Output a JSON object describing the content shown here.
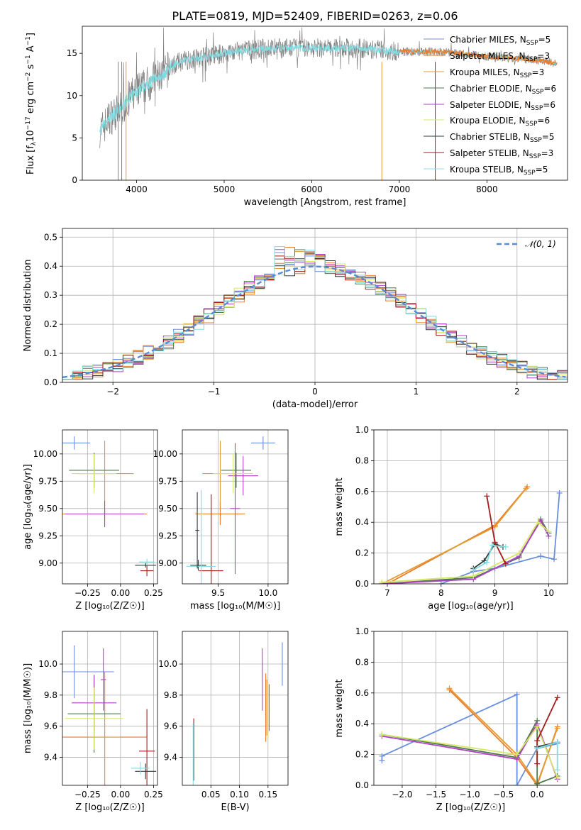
{
  "figure_title": "PLATE=0819, MJD=52409, FIBERID=0263, z=0.06",
  "colors": {
    "c0": "#6a8fdc",
    "c1": "#ea7a2d",
    "c2": "#e39b2f",
    "c3": "#4d7a4d",
    "c4": "#b240c6",
    "c5": "#d6e86a",
    "c6": "#2f3c3c",
    "c7": "#a51a1a",
    "c8": "#7fdce3"
  },
  "legend_entries": [
    {
      "pre": "Chabrier MILES, N",
      "sub": "SSP",
      "post": "=5",
      "color": "#6a8fdc"
    },
    {
      "pre": "Salpeter MILES, N",
      "sub": "SSP",
      "post": "=3",
      "color": "#ea7a2d"
    },
    {
      "pre": "Kroupa MILES, N",
      "sub": "SSP",
      "post": "=3",
      "color": "#e39b2f"
    },
    {
      "pre": "Chabrier ELODIE, N",
      "sub": "SSP",
      "post": "=6",
      "color": "#4d7a4d"
    },
    {
      "pre": "Salpeter ELODIE, N",
      "sub": "SSP",
      "post": "=6",
      "color": "#b240c6"
    },
    {
      "pre": "Kroupa ELODIE, N",
      "sub": "SSP",
      "post": "=6",
      "color": "#d6e86a"
    },
    {
      "pre": "Chabrier STELIB, N",
      "sub": "SSP",
      "post": "=5",
      "color": "#2f3c3c"
    },
    {
      "pre": "Salpeter STELIB, N",
      "sub": "SSP",
      "post": "=3",
      "color": "#a51a1a"
    },
    {
      "pre": "Kroupa STELIB, N",
      "sub": "SSP",
      "post": "=5",
      "color": "#9ad8e8"
    }
  ],
  "chart_data": [
    {
      "id": "spectrum",
      "type": "line",
      "xlabel": "wavelength [Angstrom, rest frame]",
      "ylabel_parts": {
        "a": "Flux [f",
        "b": "λ",
        "c": "10",
        "d": "−17",
        "e": " erg cm",
        "f": "−2",
        "g": " s",
        "h": "−1",
        "i": " A",
        "j": "−1",
        "k": "]"
      },
      "xlim": [
        3380,
        8920
      ],
      "ylim": [
        0,
        18.2
      ],
      "xticks": [
        4000,
        5000,
        6000,
        7000,
        8000
      ],
      "yticks": [
        0,
        5,
        10,
        15
      ],
      "grid": false,
      "data_anchor": [
        [
          3600,
          6.0
        ],
        [
          3700,
          7.5
        ],
        [
          3800,
          8.2
        ],
        [
          3900,
          9.5
        ],
        [
          4000,
          10.5
        ],
        [
          4100,
          11.2
        ],
        [
          4200,
          12.0
        ],
        [
          4300,
          12.5
        ],
        [
          4400,
          13.5
        ],
        [
          4500,
          14.0
        ],
        [
          4600,
          14.3
        ],
        [
          4800,
          14.6
        ],
        [
          5000,
          15.0
        ],
        [
          5200,
          15.3
        ],
        [
          5500,
          15.6
        ],
        [
          6000,
          15.6
        ],
        [
          6500,
          15.6
        ],
        [
          7000,
          15.2
        ],
        [
          7500,
          15.2
        ],
        [
          8000,
          14.6
        ],
        [
          8500,
          14.3
        ],
        [
          8800,
          13.8
        ]
      ]
    },
    {
      "id": "residuals",
      "type": "step",
      "xlabel": "(data-model)/error",
      "ylabel": "Normed distribution",
      "xlim": [
        -2.5,
        2.5
      ],
      "ylim": [
        0,
        0.53
      ],
      "xticks": [
        -2,
        -1,
        0,
        1,
        2
      ],
      "yticks": [
        0.0,
        0.1,
        0.2,
        0.3,
        0.4,
        0.5
      ],
      "grid": true,
      "legend": "𝒩(0, 1)",
      "bin_width": 0.1
    },
    {
      "id": "age_vs_Z",
      "type": "errorbar",
      "xlabel": "Z [log₁₀(Z/Z☉)]",
      "ylabel": "age  [log₁₀(age/yr)]",
      "xlim": [
        -0.44,
        0.28
      ],
      "ylim": [
        8.81,
        10.22
      ],
      "xticks": [
        -0.25,
        0.0,
        0.25
      ],
      "yticks": [
        9.0,
        9.25,
        9.5,
        9.75,
        10.0
      ],
      "points": [
        {
          "x": -0.35,
          "y": 10.1,
          "xerr": 0.12,
          "yerr": 0.06,
          "c": 0
        },
        {
          "x": -0.12,
          "y": 9.45,
          "xerr": 0.32,
          "yerr": 0.05,
          "c": 1
        },
        {
          "x": -0.12,
          "y": 9.82,
          "xerr": 0.22,
          "yerr": 0.3,
          "c": 2
        },
        {
          "x": -0.2,
          "y": 9.85,
          "xerr": 0.19,
          "yerr": 0.16,
          "c": 3
        },
        {
          "x": -0.12,
          "y": 9.45,
          "xerr": 0.3,
          "yerr": 0.12,
          "c": 4
        },
        {
          "x": -0.2,
          "y": 9.82,
          "xerr": 0.17,
          "yerr": 0.18,
          "c": 5
        },
        {
          "x": 0.19,
          "y": 8.98,
          "xerr": 0.08,
          "yerr": 0.02,
          "c": 6
        },
        {
          "x": 0.2,
          "y": 8.93,
          "xerr": 0.05,
          "yerr": 0.05,
          "c": 7
        },
        {
          "x": 0.2,
          "y": 9.01,
          "xerr": 0.06,
          "yerr": 0.03,
          "c": 8
        }
      ]
    },
    {
      "id": "age_vs_mass",
      "type": "errorbar",
      "xlabel": "mass [log₁₀(M/M☉)]",
      "ylabel": "",
      "xlim": [
        9.14,
        10.2
      ],
      "ylim": [
        8.81,
        10.22
      ],
      "xticks": [
        9.5,
        10.0
      ],
      "yticks": [
        9.0,
        9.25,
        9.5,
        9.75,
        10.0
      ],
      "points": [
        {
          "x": 9.95,
          "y": 10.1,
          "xerr": 0.12,
          "yerr": 0.06,
          "c": 0
        },
        {
          "x": 9.52,
          "y": 9.45,
          "xerr": 0.25,
          "yerr": 0.1,
          "c": 1
        },
        {
          "x": 9.52,
          "y": 9.82,
          "xerr": 0.18,
          "yerr": 0.3,
          "c": 2
        },
        {
          "x": 9.68,
          "y": 9.85,
          "xerr": 0.15,
          "yerr": 0.16,
          "c": 3
        },
        {
          "x": 9.75,
          "y": 9.8,
          "xerr": 0.15,
          "yerr": 0.18,
          "c": 4
        },
        {
          "x": 9.65,
          "y": 9.82,
          "xerr": 0.2,
          "yerr": 0.18,
          "c": 5
        },
        {
          "x": 9.3,
          "y": 8.98,
          "xerr": 0.08,
          "yerr": 0.05,
          "c": 6
        },
        {
          "x": 9.43,
          "y": 8.93,
          "xerr": 0.12,
          "yerr": 0.7,
          "c": 7
        },
        {
          "x": 9.33,
          "y": 8.97,
          "xerr": 0.15,
          "yerr": 0.7,
          "c": 8
        },
        {
          "x": 9.29,
          "y": 9.3,
          "xerr": 0.02,
          "yerr": 0.35,
          "c": 6
        },
        {
          "x": 9.67,
          "y": 9.5,
          "xerr": 0.05,
          "yerr": 0.6,
          "c": 4
        }
      ]
    },
    {
      "id": "massweight_vs_age",
      "type": "line",
      "xlabel": "age  [log₁₀(age/yr)]",
      "ylabel": "mass weight",
      "xlim": [
        6.75,
        10.35
      ],
      "ylim": [
        0,
        1.0
      ],
      "xticks": [
        7,
        8,
        9,
        10
      ],
      "yticks": [
        0.0,
        0.2,
        0.4,
        0.6,
        0.8,
        1.0
      ],
      "series": [
        {
          "c": 0,
          "pts": [
            [
              8.0,
              0.0
            ],
            [
              8.6,
              0.08
            ],
            [
              9.0,
              0.1
            ],
            [
              9.85,
              0.18
            ],
            [
              10.1,
              0.16
            ],
            [
              10.2,
              0.59
            ]
          ]
        },
        {
          "c": 1,
          "pts": [
            [
              7.0,
              0.0
            ],
            [
              9.0,
              0.38
            ],
            [
              9.6,
              0.63
            ]
          ]
        },
        {
          "c": 2,
          "pts": [
            [
              6.9,
              0.0
            ],
            [
              9.0,
              0.37
            ],
            [
              9.58,
              0.62
            ]
          ]
        },
        {
          "c": 3,
          "pts": [
            [
              6.9,
              0.0
            ],
            [
              8.6,
              0.04
            ],
            [
              9.45,
              0.17
            ],
            [
              9.85,
              0.42
            ],
            [
              10.0,
              0.33
            ]
          ]
        },
        {
          "c": 4,
          "pts": [
            [
              6.9,
              0.0
            ],
            [
              8.6,
              0.03
            ],
            [
              9.45,
              0.18
            ],
            [
              9.85,
              0.41
            ],
            [
              10.0,
              0.31
            ]
          ]
        },
        {
          "c": 5,
          "pts": [
            [
              6.9,
              0.01
            ],
            [
              8.6,
              0.05
            ],
            [
              9.45,
              0.2
            ],
            [
              9.8,
              0.4
            ],
            [
              10.0,
              0.34
            ]
          ]
        },
        {
          "c": 6,
          "pts": [
            [
              8.6,
              0.1
            ],
            [
              8.8,
              0.15
            ],
            [
              9.0,
              0.26
            ],
            [
              9.15,
              0.24
            ]
          ]
        },
        {
          "c": 7,
          "pts": [
            [
              8.85,
              0.57
            ],
            [
              9.0,
              0.27
            ],
            [
              9.2,
              0.13
            ]
          ]
        },
        {
          "c": 8,
          "pts": [
            [
              8.6,
              0.09
            ],
            [
              8.85,
              0.14
            ],
            [
              8.95,
              0.25
            ],
            [
              9.2,
              0.24
            ]
          ]
        }
      ]
    },
    {
      "id": "mass_vs_Z",
      "type": "errorbar",
      "xlabel": "Z [log₁₀(Z/Z☉)]",
      "ylabel": "mass [log₁₀(M/M☉)]",
      "xlim": [
        -0.44,
        0.28
      ],
      "ylim": [
        9.22,
        10.21
      ],
      "xticks": [
        -0.25,
        0.0,
        0.25
      ],
      "yticks": [
        9.4,
        9.6,
        9.8,
        10.0
      ],
      "points": [
        {
          "x": -0.35,
          "y": 9.95,
          "xerr": 0.3,
          "yerr": 0.17,
          "c": 0
        },
        {
          "x": -0.12,
          "y": 9.53,
          "xerr": 0.32,
          "yerr": 0.4,
          "c": 1
        },
        {
          "x": -0.12,
          "y": 9.53,
          "xerr": 0.12,
          "yerr": 0.42,
          "c": 2
        },
        {
          "x": -0.2,
          "y": 9.68,
          "xerr": 0.2,
          "yerr": 0.25,
          "c": 3
        },
        {
          "x": -0.2,
          "y": 9.75,
          "xerr": 0.17,
          "yerr": 0.18,
          "c": 4
        },
        {
          "x": -0.2,
          "y": 9.65,
          "xerr": 0.22,
          "yerr": 0.2,
          "c": 5
        },
        {
          "x": 0.19,
          "y": 9.31,
          "xerr": 0.08,
          "yerr": 0.05,
          "c": 6
        },
        {
          "x": 0.2,
          "y": 9.44,
          "xerr": 0.06,
          "yerr": 0.27,
          "c": 7
        },
        {
          "x": 0.15,
          "y": 9.33,
          "xerr": 0.07,
          "yerr": 0.04,
          "c": 8
        },
        {
          "x": -0.13,
          "y": 9.9,
          "xerr": 0.02,
          "yerr": 0.2,
          "c": 4
        }
      ]
    },
    {
      "id": "mass_vs_EBV",
      "type": "errorbar",
      "xlabel": "E(B-V)",
      "ylabel": "",
      "xlim": [
        0.0,
        0.185
      ],
      "ylim": [
        9.22,
        10.21
      ],
      "xticks": [
        0.05,
        0.1,
        0.15
      ],
      "yticks": [
        9.4,
        9.6,
        9.8,
        10.0
      ],
      "points": [
        {
          "x": 0.175,
          "y": 10.0,
          "xerr": 0.0,
          "yerr": 0.14,
          "c": 0
        },
        {
          "x": 0.146,
          "y": 9.72,
          "xerr": 0.0,
          "yerr": 0.22,
          "c": 1
        },
        {
          "x": 0.148,
          "y": 9.72,
          "xerr": 0.0,
          "yerr": 0.18,
          "c": 2
        },
        {
          "x": 0.15,
          "y": 9.7,
          "xerr": 0.0,
          "yerr": 0.18,
          "c": 5
        },
        {
          "x": 0.14,
          "y": 9.9,
          "xerr": 0.0,
          "yerr": 0.2,
          "c": 4
        },
        {
          "x": 0.152,
          "y": 9.72,
          "xerr": 0.0,
          "yerr": 0.15,
          "c": 4
        },
        {
          "x": 0.02,
          "y": 9.45,
          "xerr": 0.0,
          "yerr": 0.2,
          "c": 7
        },
        {
          "x": 0.019,
          "y": 9.4,
          "xerr": 0.0,
          "yerr": 0.22,
          "c": 8
        }
      ]
    },
    {
      "id": "massweight_vs_Z",
      "type": "line",
      "xlabel": "Z [log₁₀(Z/Z☉)]",
      "ylabel": "mass weight",
      "xlim": [
        -2.42,
        0.45
      ],
      "ylim": [
        0,
        1.0
      ],
      "xticks": [
        -2.0,
        -1.5,
        -1.0,
        -0.5,
        0.0
      ],
      "yticks": [
        0.0,
        0.2,
        0.4,
        0.6,
        0.8,
        1.0
      ],
      "series": [
        {
          "c": 0,
          "pts": [
            [
              -2.3,
              0.16
            ],
            [
              -2.3,
              0.19
            ],
            [
              -0.3,
              0.59
            ],
            [
              -0.3,
              0.0
            ],
            [
              0.0,
              0.24
            ],
            [
              0.3,
              0.27
            ]
          ]
        },
        {
          "c": 1,
          "pts": [
            [
              -1.3,
              0.62
            ],
            [
              -0.3,
              0.18
            ],
            [
              0.0,
              0.0
            ],
            [
              0.3,
              0.38
            ]
          ]
        },
        {
          "c": 2,
          "pts": [
            [
              -1.3,
              0.63
            ],
            [
              -0.3,
              0.2
            ],
            [
              0.0,
              0.01
            ],
            [
              0.3,
              0.37
            ]
          ]
        },
        {
          "c": 3,
          "pts": [
            [
              -2.3,
              0.33
            ],
            [
              -0.3,
              0.18
            ],
            [
              0.0,
              0.42
            ],
            [
              0.0,
              0.01
            ],
            [
              0.3,
              0.06
            ]
          ]
        },
        {
          "c": 4,
          "pts": [
            [
              -2.3,
              0.32
            ],
            [
              -0.3,
              0.17
            ],
            [
              0.0,
              0.4
            ],
            [
              0.3,
              0.04
            ]
          ]
        },
        {
          "c": 5,
          "pts": [
            [
              -2.3,
              0.33
            ],
            [
              -0.3,
              0.2
            ],
            [
              0.0,
              0.38
            ],
            [
              0.3,
              0.05
            ]
          ]
        },
        {
          "c": 6,
          "pts": [
            [
              0.0,
              0.25
            ],
            [
              0.3,
              0.28
            ]
          ]
        },
        {
          "c": 7,
          "pts": [
            [
              0.0,
              0.14
            ],
            [
              0.0,
              0.29
            ],
            [
              0.3,
              0.57
            ]
          ]
        },
        {
          "c": 8,
          "pts": [
            [
              0.0,
              0.24
            ],
            [
              0.3,
              0.28
            ],
            [
              0.3,
              0.1
            ]
          ]
        }
      ]
    }
  ]
}
